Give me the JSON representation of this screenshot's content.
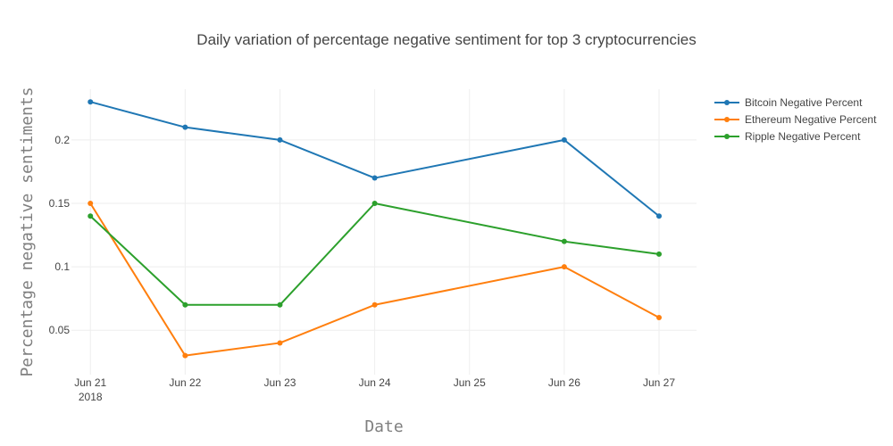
{
  "chart_data": {
    "type": "line",
    "title": "Daily variation of percentage negative sentiment for top 3 cryptocurrencies",
    "xlabel": "Date",
    "ylabel": "Percentage negative sentiments",
    "x": [
      "2018-06-21",
      "2018-06-22",
      "2018-06-23",
      "2018-06-24",
      "2018-06-26",
      "2018-06-27"
    ],
    "x_ticks": [
      {
        "date": "2018-06-21",
        "label": "Jun 21",
        "sublabel": "2018"
      },
      {
        "date": "2018-06-22",
        "label": "Jun 22"
      },
      {
        "date": "2018-06-23",
        "label": "Jun 23"
      },
      {
        "date": "2018-06-24",
        "label": "Jun 24"
      },
      {
        "date": "2018-06-25",
        "label": "Jun 25"
      },
      {
        "date": "2018-06-26",
        "label": "Jun 26"
      },
      {
        "date": "2018-06-27",
        "label": "Jun 27"
      }
    ],
    "y_ticks": [
      0.05,
      0.1,
      0.15,
      0.2
    ],
    "y_tick_labels": [
      "0.05",
      "0.1",
      "0.15",
      "0.2"
    ],
    "ylim": [
      0.015,
      0.24
    ],
    "xlim": [
      "2018-06-20T19:12",
      "2018-06-27T09:30"
    ],
    "grid": true,
    "legend_position": "top-right",
    "series": [
      {
        "name": "Bitcoin Negative Percent",
        "color": "#1f77b4",
        "values": [
          0.23,
          0.21,
          0.2,
          0.17,
          0.2,
          0.14
        ]
      },
      {
        "name": "Ethereum Negative Percent",
        "color": "#ff7f0e",
        "values": [
          0.15,
          0.03,
          0.04,
          0.07,
          0.1,
          0.06
        ]
      },
      {
        "name": "Ripple Negative Percent",
        "color": "#2ca02c",
        "values": [
          0.14,
          0.07,
          0.07,
          0.15,
          0.12,
          0.11
        ]
      }
    ]
  }
}
